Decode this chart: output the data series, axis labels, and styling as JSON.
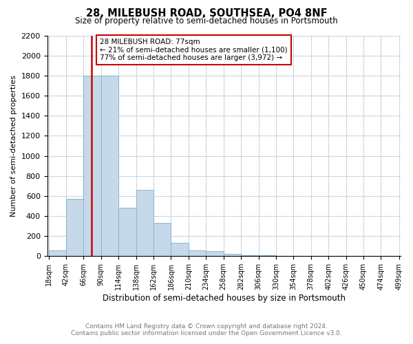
{
  "title": "28, MILEBUSH ROAD, SOUTHSEA, PO4 8NF",
  "subtitle": "Size of property relative to semi-detached houses in Portsmouth",
  "xlabel": "Distribution of semi-detached houses by size in Portsmouth",
  "ylabel": "Number of semi-detached properties",
  "footer_line1": "Contains HM Land Registry data © Crown copyright and database right 2024.",
  "footer_line2": "Contains public sector information licensed under the Open Government Licence v3.0.",
  "property_size": 77,
  "annotation_line1": "28 MILEBUSH ROAD: 77sqm",
  "annotation_line2": "← 21% of semi-detached houses are smaller (1,100)",
  "annotation_line3": "77% of semi-detached houses are larger (3,972) →",
  "bar_color": "#c5d9ea",
  "bar_edge_color": "#8ab4cc",
  "vline_color": "#cc0000",
  "annotation_box_color": "#cc0000",
  "bin_edges": [
    18,
    42,
    66,
    90,
    114,
    138,
    162,
    186,
    210,
    234,
    258,
    282,
    306,
    330,
    354,
    378,
    402,
    426,
    450,
    474,
    499
  ],
  "bar_heights": [
    60,
    570,
    1800,
    1800,
    480,
    660,
    330,
    130,
    60,
    50,
    20,
    10,
    8,
    5,
    4,
    3,
    2,
    2,
    1,
    1
  ],
  "ylim": [
    0,
    2200
  ],
  "yticks": [
    0,
    200,
    400,
    600,
    800,
    1000,
    1200,
    1400,
    1600,
    1800,
    2000,
    2200
  ],
  "background_color": "#ffffff",
  "grid_color": "#ccd6e0"
}
